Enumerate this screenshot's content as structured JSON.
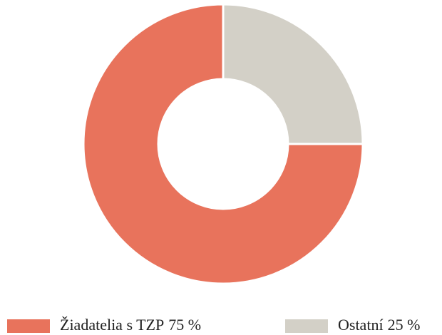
{
  "chart_data": {
    "type": "donut",
    "categories": [
      "Žiadatelia s TZP",
      "Ostatní"
    ],
    "values": [
      75,
      25
    ],
    "value_labels": [
      "75 %",
      "25 %"
    ],
    "colors": [
      "#e8735c",
      "#d3d0c7"
    ],
    "legend": "bottom"
  }
}
